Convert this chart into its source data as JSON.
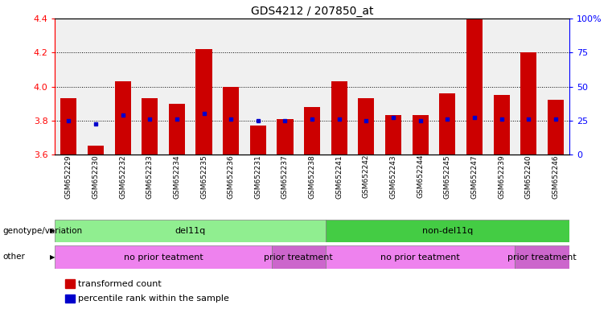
{
  "title": "GDS4212 / 207850_at",
  "samples": [
    "GSM652229",
    "GSM652230",
    "GSM652232",
    "GSM652233",
    "GSM652234",
    "GSM652235",
    "GSM652236",
    "GSM652231",
    "GSM652237",
    "GSM652238",
    "GSM652241",
    "GSM652242",
    "GSM652243",
    "GSM652244",
    "GSM652245",
    "GSM652247",
    "GSM652239",
    "GSM652240",
    "GSM652246"
  ],
  "bar_heights": [
    3.93,
    3.65,
    4.03,
    3.93,
    3.9,
    4.22,
    4.0,
    3.77,
    3.81,
    3.88,
    4.03,
    3.93,
    3.83,
    3.83,
    3.96,
    4.4,
    3.95,
    4.2,
    3.92
  ],
  "blue_dots": [
    3.8,
    3.78,
    3.83,
    3.81,
    3.81,
    3.84,
    3.81,
    3.8,
    3.8,
    3.81,
    3.81,
    3.8,
    3.82,
    3.8,
    3.81,
    3.82,
    3.81,
    3.81,
    3.81
  ],
  "ymin": 3.6,
  "ymax": 4.4,
  "bar_color": "#cc0000",
  "dot_color": "#0000cc",
  "bar_bottom": 3.6,
  "genotype_groups": [
    {
      "label": "del11q",
      "start": 0,
      "end": 10,
      "color": "#90ee90"
    },
    {
      "label": "non-del11q",
      "start": 10,
      "end": 19,
      "color": "#44cc44"
    }
  ],
  "treatment_groups": [
    {
      "label": "no prior teatment",
      "start": 0,
      "end": 8,
      "color": "#ee82ee"
    },
    {
      "label": "prior treatment",
      "start": 8,
      "end": 10,
      "color": "#cc66cc"
    },
    {
      "label": "no prior teatment",
      "start": 10,
      "end": 17,
      "color": "#ee82ee"
    },
    {
      "label": "prior treatment",
      "start": 17,
      "end": 19,
      "color": "#cc66cc"
    }
  ],
  "legend_items": [
    {
      "label": "transformed count",
      "color": "#cc0000"
    },
    {
      "label": "percentile rank within the sample",
      "color": "#0000cc"
    }
  ],
  "bg_color": "#f0f0f0"
}
